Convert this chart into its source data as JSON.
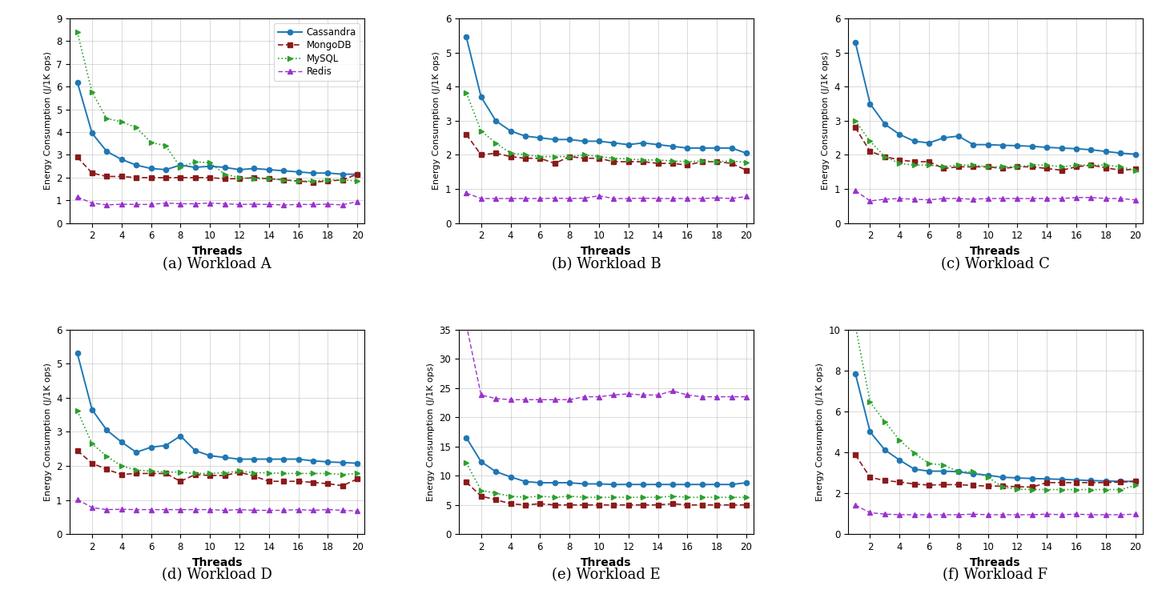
{
  "threads": [
    1,
    2,
    3,
    4,
    5,
    6,
    7,
    8,
    9,
    10,
    11,
    12,
    13,
    14,
    15,
    16,
    17,
    18,
    19,
    20
  ],
  "workloads": {
    "A": {
      "title": "(a) Workload A",
      "ylim": [
        0,
        9
      ],
      "yticks": [
        0,
        1,
        2,
        3,
        4,
        5,
        6,
        7,
        8,
        9
      ],
      "cassandra": [
        6.2,
        3.95,
        3.15,
        2.8,
        2.55,
        2.4,
        2.35,
        2.55,
        2.45,
        2.5,
        2.45,
        2.35,
        2.4,
        2.35,
        2.3,
        2.25,
        2.2,
        2.2,
        2.15,
        2.15
      ],
      "mongodb": [
        2.9,
        2.2,
        2.05,
        2.05,
        2.0,
        2.0,
        2.0,
        2.0,
        2.0,
        2.0,
        1.95,
        1.95,
        2.0,
        1.95,
        1.9,
        1.85,
        1.8,
        1.85,
        1.9,
        2.15
      ],
      "mysql": [
        8.4,
        5.75,
        4.6,
        4.45,
        4.2,
        3.55,
        3.4,
        2.45,
        2.7,
        2.65,
        2.15,
        2.0,
        1.95,
        1.95,
        1.9,
        1.85,
        1.85,
        1.9,
        1.9,
        1.85
      ],
      "redis": [
        1.15,
        0.88,
        0.8,
        0.83,
        0.82,
        0.82,
        0.88,
        0.85,
        0.85,
        0.88,
        0.85,
        0.82,
        0.83,
        0.82,
        0.8,
        0.82,
        0.82,
        0.83,
        0.8,
        0.95
      ]
    },
    "B": {
      "title": "(b) Workload B",
      "ylim": [
        0,
        6
      ],
      "yticks": [
        0,
        1,
        2,
        3,
        4,
        5,
        6
      ],
      "cassandra": [
        5.45,
        3.7,
        3.0,
        2.7,
        2.55,
        2.5,
        2.45,
        2.45,
        2.4,
        2.4,
        2.35,
        2.3,
        2.35,
        2.3,
        2.25,
        2.2,
        2.2,
        2.2,
        2.2,
        2.05
      ],
      "mongodb": [
        2.6,
        2.0,
        2.05,
        1.95,
        1.9,
        1.9,
        1.75,
        1.95,
        1.9,
        1.9,
        1.8,
        1.8,
        1.8,
        1.75,
        1.75,
        1.7,
        1.8,
        1.8,
        1.75,
        1.55
      ],
      "mysql": [
        3.82,
        2.7,
        2.35,
        2.05,
        2.0,
        1.95,
        1.95,
        1.95,
        2.0,
        1.95,
        1.9,
        1.88,
        1.85,
        1.85,
        1.82,
        1.8,
        1.82,
        1.8,
        1.82,
        1.78
      ],
      "redis": [
        0.88,
        0.72,
        0.72,
        0.72,
        0.72,
        0.72,
        0.73,
        0.72,
        0.73,
        0.8,
        0.72,
        0.72,
        0.73,
        0.72,
        0.72,
        0.72,
        0.72,
        0.74,
        0.72,
        0.78
      ]
    },
    "C": {
      "title": "(c) Workload C",
      "ylim": [
        0,
        6
      ],
      "yticks": [
        0,
        1,
        2,
        3,
        4,
        5,
        6
      ],
      "cassandra": [
        5.3,
        3.5,
        2.9,
        2.6,
        2.4,
        2.35,
        2.5,
        2.55,
        2.3,
        2.3,
        2.28,
        2.27,
        2.25,
        2.22,
        2.2,
        2.18,
        2.15,
        2.1,
        2.05,
        2.02
      ],
      "mongodb": [
        2.8,
        2.1,
        1.95,
        1.85,
        1.8,
        1.8,
        1.6,
        1.65,
        1.65,
        1.65,
        1.6,
        1.65,
        1.65,
        1.6,
        1.55,
        1.65,
        1.7,
        1.62,
        1.55,
        1.58
      ],
      "mysql": [
        3.0,
        2.4,
        1.95,
        1.75,
        1.7,
        1.7,
        1.65,
        1.7,
        1.7,
        1.65,
        1.65,
        1.65,
        1.7,
        1.7,
        1.65,
        1.7,
        1.7,
        1.7,
        1.65,
        1.55
      ],
      "redis": [
        0.95,
        0.65,
        0.7,
        0.72,
        0.7,
        0.68,
        0.72,
        0.72,
        0.7,
        0.72,
        0.72,
        0.72,
        0.72,
        0.72,
        0.72,
        0.75,
        0.75,
        0.72,
        0.72,
        0.68
      ]
    },
    "D": {
      "title": "(d) Workload D",
      "ylim": [
        0,
        6
      ],
      "yticks": [
        0,
        1,
        2,
        3,
        4,
        5,
        6
      ],
      "cassandra": [
        5.3,
        3.65,
        3.05,
        2.7,
        2.4,
        2.55,
        2.6,
        2.88,
        2.45,
        2.3,
        2.25,
        2.2,
        2.2,
        2.2,
        2.2,
        2.2,
        2.15,
        2.12,
        2.1,
        2.08
      ],
      "mongodb": [
        2.45,
        2.08,
        1.9,
        1.75,
        1.78,
        1.78,
        1.78,
        1.55,
        1.75,
        1.72,
        1.72,
        1.82,
        1.7,
        1.55,
        1.55,
        1.55,
        1.52,
        1.48,
        1.42,
        1.62
      ],
      "mysql": [
        3.62,
        2.65,
        2.28,
        2.0,
        1.88,
        1.85,
        1.82,
        1.82,
        1.78,
        1.78,
        1.8,
        1.85,
        1.8,
        1.8,
        1.78,
        1.78,
        1.78,
        1.78,
        1.75,
        1.78
      ],
      "redis": [
        1.02,
        0.78,
        0.72,
        0.73,
        0.72,
        0.72,
        0.72,
        0.72,
        0.72,
        0.72,
        0.7,
        0.72,
        0.7,
        0.7,
        0.7,
        0.72,
        0.7,
        0.72,
        0.7,
        0.68
      ]
    },
    "E": {
      "title": "(e) Workload E",
      "ylim": [
        0,
        35
      ],
      "yticks": [
        0,
        5,
        10,
        15,
        20,
        25,
        30,
        35
      ],
      "cassandra": [
        16.5,
        12.4,
        10.7,
        9.8,
        9.0,
        8.8,
        8.8,
        8.8,
        8.6,
        8.6,
        8.5,
        8.5,
        8.5,
        8.5,
        8.5,
        8.5,
        8.5,
        8.5,
        8.5,
        8.8
      ],
      "mongodb": [
        8.9,
        6.5,
        5.9,
        5.2,
        5.0,
        5.2,
        5.0,
        5.0,
        5.0,
        5.0,
        5.0,
        5.0,
        5.0,
        5.0,
        5.2,
        5.0,
        5.0,
        5.0,
        5.0,
        5.0
      ],
      "mysql": [
        12.2,
        7.5,
        7.0,
        6.5,
        6.3,
        6.5,
        6.3,
        6.5,
        6.3,
        6.3,
        6.3,
        6.3,
        6.3,
        6.3,
        6.5,
        6.3,
        6.3,
        6.3,
        6.3,
        6.3
      ],
      "redis": [
        35.8,
        23.8,
        23.2,
        23.0,
        23.0,
        23.0,
        23.0,
        23.0,
        23.5,
        23.5,
        23.8,
        24.0,
        23.8,
        23.8,
        24.5,
        23.8,
        23.5,
        23.5,
        23.5,
        23.5
      ]
    },
    "F": {
      "title": "(f) Workload F",
      "ylim": [
        0,
        10
      ],
      "yticks": [
        0,
        2,
        4,
        6,
        8,
        10
      ],
      "cassandra": [
        7.85,
        5.0,
        4.12,
        3.62,
        3.18,
        3.08,
        3.08,
        3.05,
        2.95,
        2.88,
        2.78,
        2.75,
        2.72,
        2.7,
        2.68,
        2.65,
        2.62,
        2.6,
        2.58,
        2.58
      ],
      "mongodb": [
        3.88,
        2.78,
        2.62,
        2.55,
        2.45,
        2.4,
        2.42,
        2.42,
        2.38,
        2.35,
        2.35,
        2.32,
        2.3,
        2.52,
        2.52,
        2.52,
        2.52,
        2.52,
        2.55,
        2.58
      ],
      "mysql": [
        10.2,
        6.45,
        5.5,
        4.6,
        3.95,
        3.45,
        3.38,
        3.05,
        3.05,
        2.78,
        2.3,
        2.2,
        2.18,
        2.18,
        2.18,
        2.18,
        2.18,
        2.18,
        2.18,
        2.38
      ],
      "redis": [
        1.42,
        1.05,
        0.98,
        0.95,
        0.95,
        0.95,
        0.95,
        0.95,
        0.98,
        0.95,
        0.95,
        0.95,
        0.95,
        0.98,
        0.95,
        0.98,
        0.95,
        0.95,
        0.95,
        0.98
      ]
    }
  },
  "colors": {
    "cassandra": "#1f77b4",
    "mongodb": "#8b1a1a",
    "mysql": "#2ca02c",
    "redis": "#9932cc"
  },
  "ylabel": "Energy Consumption (J/1K ops)",
  "xlabel": "Threads"
}
